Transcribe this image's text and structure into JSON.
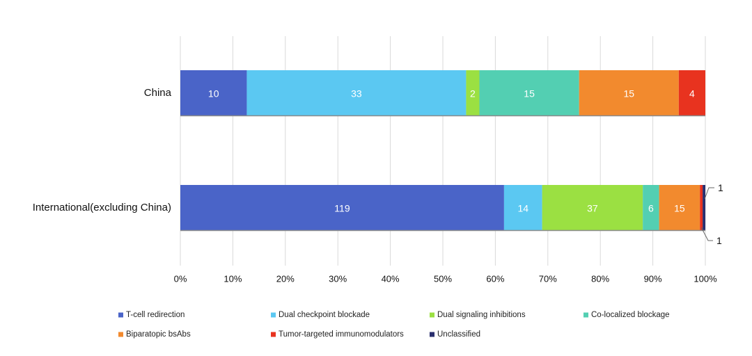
{
  "chart_data": {
    "type": "bar",
    "orientation": "horizontal",
    "stacking": "percent",
    "categories": [
      "China",
      "International(excluding China)"
    ],
    "series": [
      {
        "name": "T-cell redirection",
        "color": "#4a64c8",
        "values": [
          10,
          119
        ]
      },
      {
        "name": "Dual checkpoint blockade",
        "color": "#5bc8f2",
        "values": [
          33,
          14
        ]
      },
      {
        "name": "Dual signaling inhibitions",
        "color": "#9be042",
        "values": [
          2,
          37
        ]
      },
      {
        "name": "Co-localized blockage",
        "color": "#53cfb2",
        "values": [
          15,
          6
        ]
      },
      {
        "name": "Biparatopic bsAbs",
        "color": "#f28a2e",
        "values": [
          15,
          15
        ]
      },
      {
        "name": "Tumor-targeted immunomodulators",
        "color": "#e8331f",
        "values": [
          4,
          1
        ]
      },
      {
        "name": "Unclassified",
        "color": "#2a2f6e",
        "values": [
          0,
          1
        ]
      }
    ],
    "xlim": [
      0,
      100
    ],
    "xticks": [
      "0%",
      "10%",
      "20%",
      "30%",
      "40%",
      "50%",
      "60%",
      "70%",
      "80%",
      "90%",
      "100%"
    ],
    "grid": "vertical",
    "legend_position": "bottom",
    "callouts": [
      {
        "category": "International(excluding China)",
        "series": "Unclassified",
        "label": "1"
      },
      {
        "category": "International(excluding China)",
        "series": "Tumor-targeted immunomodulators",
        "label": "1"
      }
    ]
  }
}
